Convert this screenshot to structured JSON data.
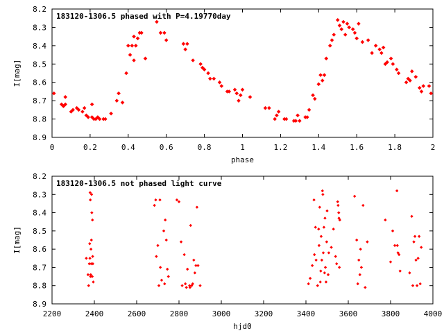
{
  "colors": {
    "points": "#ff0000",
    "axes": "#000000",
    "background": "#ffffff"
  },
  "chart_data": [
    {
      "type": "scatter",
      "title": "183120-1306.5 phased with P=4.19770day",
      "xlabel": "phase",
      "ylabel": "I[mag]",
      "xlim": [
        0,
        2
      ],
      "ylim": [
        8.9,
        8.2
      ],
      "y_reversed": true,
      "grid": false,
      "xticks": [
        "0",
        "0.2",
        "0.4",
        "0.6",
        "0.8",
        "1",
        "1.2",
        "1.4",
        "1.6",
        "1.8",
        "2"
      ],
      "yticks": [
        "8.2",
        "8.3",
        "8.4",
        "8.5",
        "8.6",
        "8.7",
        "8.8",
        "8.9"
      ],
      "x": [
        0.01,
        0.05,
        0.06,
        0.07,
        0.07,
        0.1,
        0.11,
        0.13,
        0.14,
        0.16,
        0.17,
        0.18,
        0.19,
        0.21,
        0.21,
        0.22,
        0.23,
        0.24,
        0.25,
        0.27,
        0.28,
        0.31,
        0.34,
        0.35,
        0.37,
        0.39,
        0.4,
        0.41,
        0.42,
        0.43,
        0.43,
        0.44,
        0.45,
        0.46,
        0.47,
        0.49,
        0.55,
        0.57,
        0.59,
        0.6,
        0.69,
        0.7,
        0.71,
        0.74,
        0.78,
        0.79,
        0.8,
        0.82,
        0.83,
        0.85,
        0.88,
        0.89,
        0.92,
        0.93,
        0.96,
        0.97,
        0.98,
        0.99,
        1.0,
        1.04,
        1.12,
        1.14,
        1.17,
        1.18,
        1.19,
        1.22,
        1.23,
        1.27,
        1.28,
        1.29,
        1.3,
        1.33,
        1.34,
        1.35,
        1.37,
        1.38,
        1.4,
        1.41,
        1.42,
        1.43,
        1.44,
        1.46,
        1.47,
        1.48,
        1.5,
        1.51,
        1.52,
        1.53,
        1.54,
        1.55,
        1.56,
        1.58,
        1.59,
        1.6,
        1.61,
        1.63,
        1.66,
        1.68,
        1.7,
        1.72,
        1.73,
        1.74,
        1.75,
        1.76,
        1.78,
        1.79,
        1.81,
        1.82,
        1.86,
        1.87,
        1.88,
        1.89,
        1.91,
        1.93,
        1.94,
        1.95,
        1.98,
        1.99
      ],
      "y": [
        8.66,
        8.72,
        8.73,
        8.68,
        8.72,
        8.76,
        8.75,
        8.74,
        8.75,
        8.76,
        8.74,
        8.78,
        8.79,
        8.72,
        8.79,
        8.8,
        8.8,
        8.79,
        8.8,
        8.8,
        8.8,
        8.77,
        8.7,
        8.66,
        8.71,
        8.55,
        8.4,
        8.45,
        8.4,
        8.48,
        8.35,
        8.4,
        8.36,
        8.33,
        8.33,
        8.47,
        8.27,
        8.33,
        8.33,
        8.37,
        8.39,
        8.42,
        8.39,
        8.48,
        8.5,
        8.52,
        8.53,
        8.55,
        8.58,
        8.58,
        8.6,
        8.62,
        8.65,
        8.65,
        8.64,
        8.66,
        8.7,
        8.67,
        8.64,
        8.68,
        8.74,
        8.74,
        8.8,
        8.78,
        8.76,
        8.8,
        8.8,
        8.81,
        8.81,
        8.78,
        8.81,
        8.79,
        8.79,
        8.75,
        8.67,
        8.69,
        8.61,
        8.56,
        8.59,
        8.56,
        8.47,
        8.4,
        8.37,
        8.34,
        8.26,
        8.29,
        8.31,
        8.27,
        8.34,
        8.28,
        8.3,
        8.31,
        8.33,
        8.36,
        8.28,
        8.38,
        8.37,
        8.44,
        8.4,
        8.42,
        8.44,
        8.41,
        8.5,
        8.49,
        8.47,
        8.5,
        8.53,
        8.55,
        8.6,
        8.58,
        8.59,
        8.54,
        8.57,
        8.63,
        8.65,
        8.62,
        8.62,
        8.66
      ]
    },
    {
      "type": "scatter",
      "title": "183120-1306.5 not phased light curve",
      "xlabel": "hjd0",
      "ylabel": "I[mag]",
      "xlim": [
        2200,
        4000
      ],
      "ylim": [
        8.9,
        8.2
      ],
      "y_reversed": true,
      "grid": false,
      "xticks": [
        "2200",
        "2400",
        "2600",
        "2800",
        "3000",
        "3200",
        "3400",
        "3600",
        "3800",
        "4000"
      ],
      "yticks": [
        "8.2",
        "8.3",
        "8.4",
        "8.5",
        "8.6",
        "8.7",
        "8.8",
        "8.9"
      ],
      "x": [
        2362,
        2370,
        2373,
        2376,
        2378,
        2379,
        2380,
        2381,
        2382,
        2383,
        2384,
        2385,
        2386,
        2387,
        2388,
        2390,
        2391,
        2392,
        2393,
        2395,
        2684,
        2690,
        2693,
        2700,
        2705,
        2710,
        2712,
        2718,
        2728,
        2732,
        2735,
        2740,
        2745,
        2750,
        2790,
        2800,
        2810,
        2815,
        2825,
        2830,
        2835,
        2840,
        2850,
        2852,
        2855,
        2860,
        2865,
        2870,
        2875,
        2880,
        2885,
        2890,
        2900,
        3412,
        3420,
        3430,
        3438,
        3440,
        3445,
        3448,
        3455,
        3460,
        3462,
        3465,
        3468,
        3470,
        3472,
        3475,
        3478,
        3480,
        3482,
        3485,
        3488,
        3490,
        3492,
        3495,
        3498,
        3500,
        3505,
        3508,
        3520,
        3530,
        3540,
        3545,
        3550,
        3552,
        3555,
        3556,
        3558,
        3560,
        3630,
        3640,
        3645,
        3650,
        3655,
        3658,
        3662,
        3670,
        3680,
        3690,
        3775,
        3800,
        3810,
        3820,
        3830,
        3832,
        3835,
        3840,
        3845,
        3890,
        3900,
        3905,
        3910,
        3915,
        3920,
        3925,
        3930,
        3935,
        3940,
        3945
      ],
      "y": [
        8.65,
        8.74,
        8.8,
        8.68,
        8.57,
        8.65,
        8.29,
        8.33,
        8.75,
        8.74,
        8.6,
        8.68,
        8.55,
        8.3,
        8.4,
        8.75,
        8.44,
        8.64,
        8.68,
        8.78,
        8.36,
        8.33,
        8.64,
        8.58,
        8.8,
        8.33,
        8.7,
        8.77,
        8.5,
        8.79,
        8.44,
        8.55,
        8.71,
        8.75,
        8.33,
        8.34,
        8.56,
        8.8,
        8.63,
        8.79,
        8.81,
        8.71,
        8.8,
        8.81,
        8.47,
        8.8,
        8.79,
        8.66,
        8.73,
        8.69,
        8.37,
        8.69,
        8.8,
        8.79,
        8.76,
        8.69,
        8.33,
        8.63,
        8.48,
        8.66,
        8.8,
        8.49,
        8.58,
        8.37,
        8.78,
        8.72,
        8.53,
        8.66,
        8.28,
        8.3,
        8.62,
        8.48,
        8.73,
        8.43,
        8.7,
        8.78,
        8.56,
        8.39,
        8.74,
        8.62,
        8.59,
        8.49,
        8.64,
        8.68,
        8.34,
        8.36,
        8.4,
        8.43,
        8.7,
        8.44,
        8.31,
        8.55,
        8.79,
        8.66,
        8.74,
        8.6,
        8.7,
        8.36,
        8.81,
        8.56,
        8.44,
        8.67,
        8.5,
        8.58,
        8.28,
        8.58,
        8.62,
        8.63,
        8.72,
        8.73,
        8.42,
        8.8,
        8.56,
        8.53,
        8.66,
        8.8,
        8.65,
        8.53,
        8.79,
        8.59
      ]
    }
  ]
}
